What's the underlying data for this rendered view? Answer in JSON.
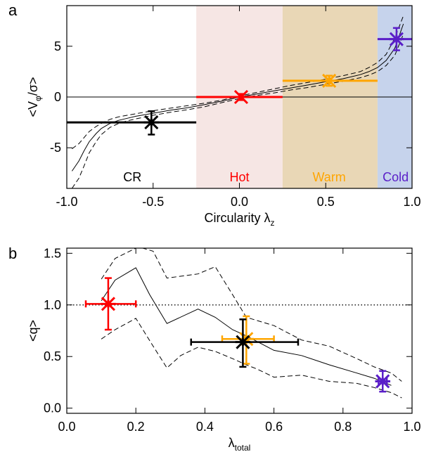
{
  "chart_data": [
    {
      "panel_label": "a",
      "type": "line",
      "xlabel": "Circularity λ",
      "xlabel_sub": "z",
      "ylabel_parts": [
        "<V",
        "φ",
        "/σ>"
      ],
      "xlim": [
        -1.0,
        1.0
      ],
      "ylim": [
        -9,
        9
      ],
      "xticks": [
        -1.0,
        -0.5,
        0.0,
        0.5,
        1.0
      ],
      "xtick_labels": [
        "-1.0",
        "-0.5",
        "0.0",
        "0.5",
        "1.0"
      ],
      "yticks": [
        -5,
        0,
        5
      ],
      "ytick_labels": [
        "-5",
        "0",
        "5"
      ],
      "reference_line": {
        "y": 0,
        "style": "solid"
      },
      "regions": [
        {
          "label": "CR",
          "x0": -1.0,
          "x1": -0.25,
          "color": "#ffffff",
          "label_color": "#000000",
          "label_x": -0.62
        },
        {
          "label": "Hot",
          "x0": -0.25,
          "x1": 0.25,
          "color": "#f6e6e4",
          "label_color": "#ff0000",
          "label_x": 0.0
        },
        {
          "label": "Warm",
          "x0": 0.25,
          "x1": 0.8,
          "color": "#e9d7b6",
          "label_color": "#ffa500",
          "label_x": 0.52
        },
        {
          "label": "Cold",
          "x0": 0.8,
          "x1": 1.0,
          "color": "#c6d3ec",
          "label_color": "#5a1ec8",
          "label_x": 0.905
        }
      ],
      "median_curve": {
        "x": [
          -0.97,
          -0.93,
          -0.9,
          -0.87,
          -0.83,
          -0.8,
          -0.75,
          -0.7,
          -0.65,
          -0.6,
          -0.5,
          -0.4,
          -0.3,
          -0.2,
          -0.1,
          0.0,
          0.1,
          0.2,
          0.3,
          0.4,
          0.5,
          0.6,
          0.7,
          0.75,
          0.8,
          0.85,
          0.9,
          0.95
        ],
        "y": [
          -7.3,
          -6.3,
          -5.3,
          -4.4,
          -3.6,
          -3.1,
          -2.6,
          -2.3,
          -2.1,
          -1.9,
          -1.6,
          -1.3,
          -1.05,
          -0.75,
          -0.4,
          0.0,
          0.3,
          0.6,
          0.9,
          1.2,
          1.5,
          1.8,
          2.2,
          2.5,
          2.9,
          3.6,
          4.8,
          7.2
        ]
      },
      "upper_curve": {
        "x": [
          -0.97,
          -0.93,
          -0.9,
          -0.87,
          -0.83,
          -0.8,
          -0.75,
          -0.7,
          -0.65,
          -0.6,
          -0.5,
          -0.4,
          -0.3,
          -0.2,
          -0.1,
          0.0,
          0.1,
          0.2,
          0.3,
          0.4,
          0.5,
          0.6,
          0.7,
          0.75,
          0.8,
          0.85,
          0.9,
          0.95
        ],
        "y": [
          -5.1,
          -4.6,
          -4.0,
          -3.4,
          -2.9,
          -2.6,
          -2.2,
          -1.95,
          -1.8,
          -1.65,
          -1.35,
          -1.1,
          -0.85,
          -0.6,
          -0.3,
          0.1,
          0.45,
          0.8,
          1.15,
          1.45,
          1.75,
          2.1,
          2.5,
          2.9,
          3.4,
          4.2,
          5.8,
          8.0
        ]
      },
      "lower_curve": {
        "x": [
          -0.97,
          -0.93,
          -0.9,
          -0.87,
          -0.83,
          -0.8,
          -0.75,
          -0.7,
          -0.65,
          -0.6,
          -0.5,
          -0.4,
          -0.3,
          -0.2,
          -0.1,
          0.0,
          0.1,
          0.2,
          0.3,
          0.4,
          0.5,
          0.6,
          0.7,
          0.75,
          0.8,
          0.85,
          0.9,
          0.95
        ],
        "y": [
          -9.0,
          -8.0,
          -6.8,
          -5.5,
          -4.4,
          -3.7,
          -3.0,
          -2.6,
          -2.35,
          -2.15,
          -1.8,
          -1.5,
          -1.25,
          -0.95,
          -0.55,
          -0.15,
          0.15,
          0.4,
          0.7,
          0.95,
          1.25,
          1.55,
          1.9,
          2.15,
          2.5,
          3.1,
          4.1,
          6.2
        ]
      },
      "points": [
        {
          "name": "CR",
          "x": -0.51,
          "y": -2.5,
          "yerr": [
            1.2,
            1.1
          ],
          "xmin": -1.0,
          "xmax": -0.25,
          "color": "#000000"
        },
        {
          "name": "Hot",
          "x": 0.01,
          "y": 0.0,
          "yerr": [
            0.3,
            0.3
          ],
          "xmin": -0.25,
          "xmax": 0.25,
          "color": "#ff0000"
        },
        {
          "name": "Warm",
          "x": 0.52,
          "y": 1.6,
          "yerr": [
            0.5,
            0.5
          ],
          "xmin": 0.25,
          "xmax": 0.8,
          "color": "#ffa500"
        },
        {
          "name": "Cold",
          "x": 0.91,
          "y": 5.7,
          "yerr": [
            1.1,
            1.1
          ],
          "xmin": 0.8,
          "xmax": 1.0,
          "color": "#5a1ec8"
        }
      ]
    },
    {
      "panel_label": "b",
      "type": "line",
      "xlabel": "λ",
      "xlabel_sub": "total",
      "ylabel": "<q>",
      "xlim": [
        0.0,
        1.0
      ],
      "ylim": [
        -0.05,
        1.55
      ],
      "xticks": [
        0.0,
        0.2,
        0.4,
        0.6,
        0.8,
        1.0
      ],
      "xtick_labels": [
        "0.0",
        "0.2",
        "0.4",
        "0.6",
        "0.8",
        "1.0"
      ],
      "yticks": [
        0.0,
        0.5,
        1.0,
        1.5
      ],
      "ytick_labels": [
        "0.0",
        "0.5",
        "1.0",
        "1.5"
      ],
      "reference_line": {
        "y": 1.0,
        "style": "dotted"
      },
      "median_curve": {
        "x": [
          0.1,
          0.14,
          0.2,
          0.24,
          0.29,
          0.38,
          0.43,
          0.48,
          0.52,
          0.6,
          0.68,
          0.76,
          0.84,
          0.89,
          0.94
        ],
        "y": [
          1.04,
          1.24,
          1.36,
          1.1,
          0.82,
          0.96,
          0.88,
          0.76,
          0.7,
          0.56,
          0.51,
          0.42,
          0.34,
          0.29,
          0.22
        ]
      },
      "upper_curve": {
        "x": [
          0.1,
          0.14,
          0.2,
          0.22,
          0.25,
          0.29,
          0.38,
          0.43,
          0.48,
          0.52,
          0.6,
          0.68,
          0.76,
          0.84,
          0.89,
          0.94,
          0.97
        ],
        "y": [
          1.25,
          1.45,
          1.55,
          1.55,
          1.52,
          1.26,
          1.3,
          1.37,
          1.1,
          0.88,
          0.8,
          0.66,
          0.6,
          0.48,
          0.4,
          0.34,
          0.26
        ]
      },
      "lower_curve": {
        "x": [
          0.1,
          0.14,
          0.2,
          0.25,
          0.29,
          0.33,
          0.38,
          0.43,
          0.48,
          0.52,
          0.55,
          0.6,
          0.68,
          0.76,
          0.84,
          0.89,
          0.94,
          0.97
        ],
        "y": [
          0.67,
          0.76,
          0.87,
          0.6,
          0.39,
          0.51,
          0.59,
          0.55,
          0.48,
          0.42,
          0.38,
          0.3,
          0.32,
          0.26,
          0.24,
          0.2,
          0.15,
          0.1
        ]
      },
      "points": [
        {
          "name": "Hot",
          "x": 0.12,
          "y": 1.01,
          "xerr": [
            0.065,
            0.08
          ],
          "yerr": [
            0.25,
            0.25
          ],
          "color": "#ff0000"
        },
        {
          "name": "Warm",
          "x": 0.52,
          "y": 0.67,
          "xerr": [
            0.07,
            0.08
          ],
          "yerr": [
            0.24,
            0.22
          ],
          "color": "#ffa500"
        },
        {
          "name": "CR",
          "x": 0.51,
          "y": 0.64,
          "xerr": [
            0.15,
            0.16
          ],
          "yerr": [
            0.24,
            0.22
          ],
          "color": "#000000"
        },
        {
          "name": "Cold",
          "x": 0.915,
          "y": 0.26,
          "xerr": [
            0.012,
            0.012
          ],
          "yerr": [
            0.1,
            0.1
          ],
          "color": "#5a1ec8"
        }
      ]
    }
  ]
}
